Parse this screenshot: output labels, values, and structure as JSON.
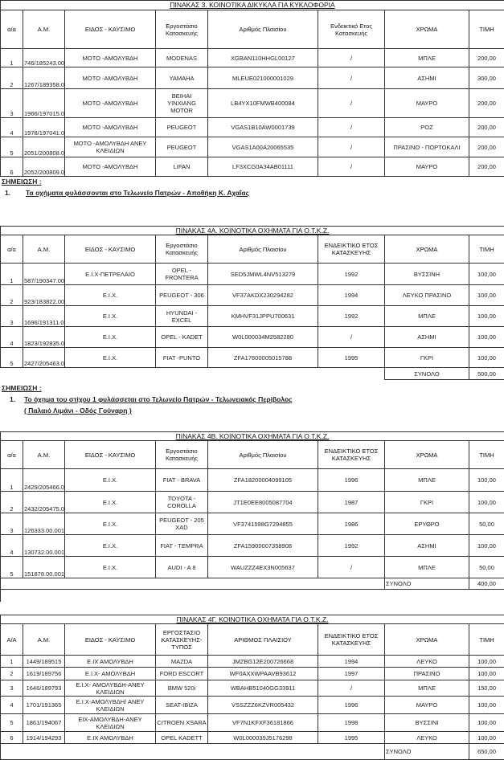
{
  "tables": [
    {
      "title": "ΠΙΝΑΚΑΣ 3.   ΚΟΙΝΟΤΙΚΑ ΔΙΚΥΚΛΑ ΓΙΑ ΚΥΚΛΟΦΟΡΙΑ",
      "headers": [
        "α/α",
        "Α.Μ.",
        "ΕΙΔΟΣ - ΚΑΥΣΙΜΟ",
        "Εργοστάσιο Κατασκευής",
        "Αριθμός Πλαισίου",
        "Ενδεικτικό Ετος Κατασκευής",
        "ΧΡΩΜΑ",
        "ΤΙΜΗ"
      ],
      "rows": [
        [
          "1",
          "746/185243.00.001",
          "ΜΟΤΟ -ΑΜΟΛΥΒΔΗ",
          "MODENAS",
          "XGBAN110HHGL00127",
          "/",
          "ΜΠΛΕ",
          "200,00"
        ],
        [
          "2",
          "1267/189358.00.001",
          "ΜΟΤΟ -ΑΜΟΛΥΒΔΗ",
          "YAMAHA",
          "MLEUE021000001029",
          "/",
          "ΑΣΗΜΙ",
          "300,00"
        ],
        [
          "3",
          "1966/197015.00.001",
          "ΜΟΤΟ -ΑΜΟΛΥΒΔΗ",
          "BEIHAI YINXIANG MOTOR",
          "LB4YX10FMWB400084",
          "/",
          "ΜΑΥΡΟ",
          "200,00"
        ],
        [
          "4",
          "1978/197041.00.001",
          "ΜΟΤΟ -ΑΜΟΛΥΒΔΗ",
          "PEUGEOT",
          "VGAS1B10AW0001739",
          "/",
          "ΡΟΖ",
          "200,00"
        ],
        [
          "5",
          "2051/200808.00.001",
          "ΜΟΤΟ -ΑΜΟΛΥΒΔΗ ΑΝΕΥ ΚΛΕΙΔΙΩΝ",
          "PEUGEOT",
          "VGAS1A00A20065535",
          "/",
          "ΠΡΑΣΙΝΟ - ΠΟΡΤΟΚΑΛΙ",
          "200,00"
        ],
        [
          "6",
          "2052/200809.00.001",
          "ΜΟΤΟ -ΑΜΟΛΥΒΔΗ",
          "LIFAN",
          "LF3XCG0A34AB01111",
          "/",
          "ΜΑΥΡΟ",
          "200,00"
        ]
      ],
      "note_heading": "ΣΗΜΕΙΩΣΗ :",
      "notes": [
        {
          "num": "1.",
          "lines": [
            "Τα  οχήματα φυλάσσονται στο Τελωνείο Πατρών - Αποθήκη Κ. Αχαΐας"
          ]
        }
      ]
    },
    {
      "title": "ΠΙΝΑΚΑΣ 4Α. ΚΟΙΝΟΤΙΚΑ ΟΧΗΜΑΤΑ ΓΙΑ Ο.Τ.Κ.Ζ.",
      "headers": [
        "α/α",
        "Α.Μ.",
        "ΕΙΔΟΣ - ΚΑΥΣΙΜΟ",
        "Εργοστάσιο Κατασκευής",
        "Αριθμός Πλαισίου",
        "ΕΝΔΕΙΚΤΙΚΟ ΕΤΟΣ ΚΑΤΑΣΚΕΥΗΣ",
        "ΧΡΩΜΑ",
        "ΤΙΜΗ"
      ],
      "rows": [
        [
          "1",
          "587/190347.00.001",
          "Ε.Ι.Χ-ΠΕΤΡΕΛΑΙΟ",
          "OPEL -FRONTERA",
          "SED5JMWL4NV513279",
          "1992",
          "ΒΥΣΣΙΝΗ",
          "100,00"
        ],
        [
          "2",
          "923/183822.00.001",
          "Ε.Ι.Χ.",
          "PEUGEOT - 306",
          "VF37AKDX230294282",
          "1994",
          "ΛΕΥΚΟ ΠΡΑΣΙΝΟ",
          "100,00"
        ],
        [
          "3",
          "1696/191311.00.001",
          "Ε.Ι.Χ.",
          "HYUNDAI - EXCEL",
          "KMHVF31JPPU700631",
          "1992",
          "ΜΠΛΕ",
          "100,00"
        ],
        [
          "4",
          "1823/192835.00.001",
          "Ε.Ι.Χ.",
          "OPEL - KADET",
          "W0L000034M2582280",
          "/",
          "ΑΣΗΜΙ",
          "100,00"
        ],
        [
          "5",
          "2427/205463.00.001",
          "Ε.Ι.Χ.",
          "FIAT -PUNTO",
          "ZFA17600005015788",
          "1995",
          "ΓΚΡΙ",
          "100,00"
        ]
      ],
      "total_label": "ΣΥΝΟΛΟ",
      "total_value": "500,00",
      "note_heading": "ΣΗΜΕΙΩΣΗ :",
      "notes": [
        {
          "num": "1.",
          "lines": [
            "Το  όχημα του στίχου 1 φυλάσσεται στο Τελωνείο Πατρών - Τελωνειακός Περίβολος",
            "( Παλαιό Λιμάνι - Οδός Γούναρη )"
          ]
        }
      ]
    },
    {
      "title": "ΠΙΝΑΚΑΣ 4Β. ΚΟΙΝΟΤΙΚΑ ΟΧΗΜΑΤΑ ΓΙΑ Ο.Τ.Κ.Ζ.",
      "headers": [
        "α/α",
        "Α.Μ.",
        "ΕΙΔΟΣ - ΚΑΥΣΙΜΟ",
        "Εργοστάσιο Κατασκευής",
        "Αριθμός Πλαισίου",
        "ΕΝΔΕΙΚΤΙΚΟ ΕΤΟΣ ΚΑΤΑΣΚΕΥΗΣ",
        "ΧΡΩΜΑ",
        "ΤΙΜΗ"
      ],
      "rows": [
        [
          "1",
          "2429/205466.00.001",
          "Ε.Ι.Χ.",
          "FIAT - BRAVA",
          "ZFA18200004099105",
          "1996",
          "ΜΠΛΕ",
          "100,00"
        ],
        [
          "2",
          "2432/205475.00.001",
          "Ε.Ι.Χ.",
          "TOYOTA - COROLLA",
          "JT1E0EE8005087704",
          "1987",
          "ΓΚΡΙ",
          "100,00"
        ],
        [
          "3",
          "126333.00.001",
          "Ε.Ι.Χ.",
          "PEUGEOT - 205 XAD",
          "VF3741598G7294855",
          "1986",
          "ΕΡΥΘΡΟ",
          "50,00"
        ],
        [
          "4",
          "130732.00.001",
          "Ε.Ι.Χ.",
          "FIAT - TEMPRA",
          "ZFA15900007358908",
          "1992",
          "ΑΣΗΜΙ",
          "100,00"
        ],
        [
          "5",
          "151878.00.001",
          "Ε.Ι.Χ.",
          "AUDI - A 8",
          "WAUZZZ4EX3N005637",
          "/",
          "ΜΠΛΕ",
          "50,00"
        ]
      ],
      "total_label": "ΣΥΝΟΛΟ",
      "total_value": "400,00"
    },
    {
      "title": "ΠΙΝΑΚΑΣ 4Γ. ΚΟΙΝΟΤΙΚΑ ΟΧΗΜΑΤΑ ΓΙΑ Ο.Τ.Κ.Ζ.",
      "headers": [
        "Α/Α",
        "Α.Μ.",
        "ΕΙΔΟΣ - ΚΑΥΣΙΜΟ",
        "ΕΡΓΟΣΤΑΣΙΟ ΚΑΤΑΣΚΕΥΗΣ- ΤΥΠΟΣ",
        "ΑΡΙΘΜΟΣ ΠΛΑΙΣΙΟΥ",
        "ΕΝΔΕΙΚΤΙΚΟ ΕΤΟΣ ΚΑΤΑΣΚΕΥΗΣ",
        "ΧΡΩΜΑ",
        "ΤΙΜΗ"
      ],
      "rows": [
        [
          "1",
          "1449/189515",
          "Ε.ΙΧ ΑΜΟΛΥΒΔΗ",
          "MAZDA",
          "JMZBG12E200726668",
          "1994",
          "ΛΕΥΚΟ",
          "100,00"
        ],
        [
          "2",
          "1619/189756",
          "Ε.Ι.Χ- ΑΜΟΛΥΒΔΗ",
          "FORD ESCORT",
          "WF0AXXWPAAVB93612",
          "1997",
          "ΠΡΑΣΙΝΟ",
          "100,00"
        ],
        [
          "3",
          "1646/189793",
          "Ε.Ι.Χ- ΑΜΟΛΥΒΔΗ-ΑΝΕΥ ΚΛΕΙΔΙΩΝ",
          "BMW 520i",
          "WBAHB51040GG33911",
          "/",
          "ΜΠΛΕ",
          "150,00"
        ],
        [
          "4",
          "1701/191365",
          "Ε.Ι.Χ-ΑΜΟΛΥΒΔΗ/ ΑΝΕΥ ΚΛΕΙΔΙΩΝ",
          "SEAT-IBIZA",
          "VSSZZZ6KZVR005432",
          "1996",
          "ΜΑΥΡΟ",
          "100,00"
        ],
        [
          "5",
          "1861/194067",
          "ΕΙΧ-ΑΜΟΛΥΒΔΗ-ΑΝΕΥ ΚΛΕΙΔΙΩΝ",
          "CITROEN XSARA",
          "VF7N1KFXF36181866",
          "1998",
          "ΒΥΣΣΙΝΙ",
          "100,00"
        ],
        [
          "6",
          "1914/194293",
          "Ε.ΙΧ ΑΜΟΛΥΒΔΗ",
          "OPEL KADETT",
          "W0L000039J5176298",
          "1995",
          "ΛΕΥΚΟ",
          "100,00"
        ]
      ],
      "total_label": "ΣΥΝΟΛΟ",
      "total_value": "650,00"
    }
  ]
}
